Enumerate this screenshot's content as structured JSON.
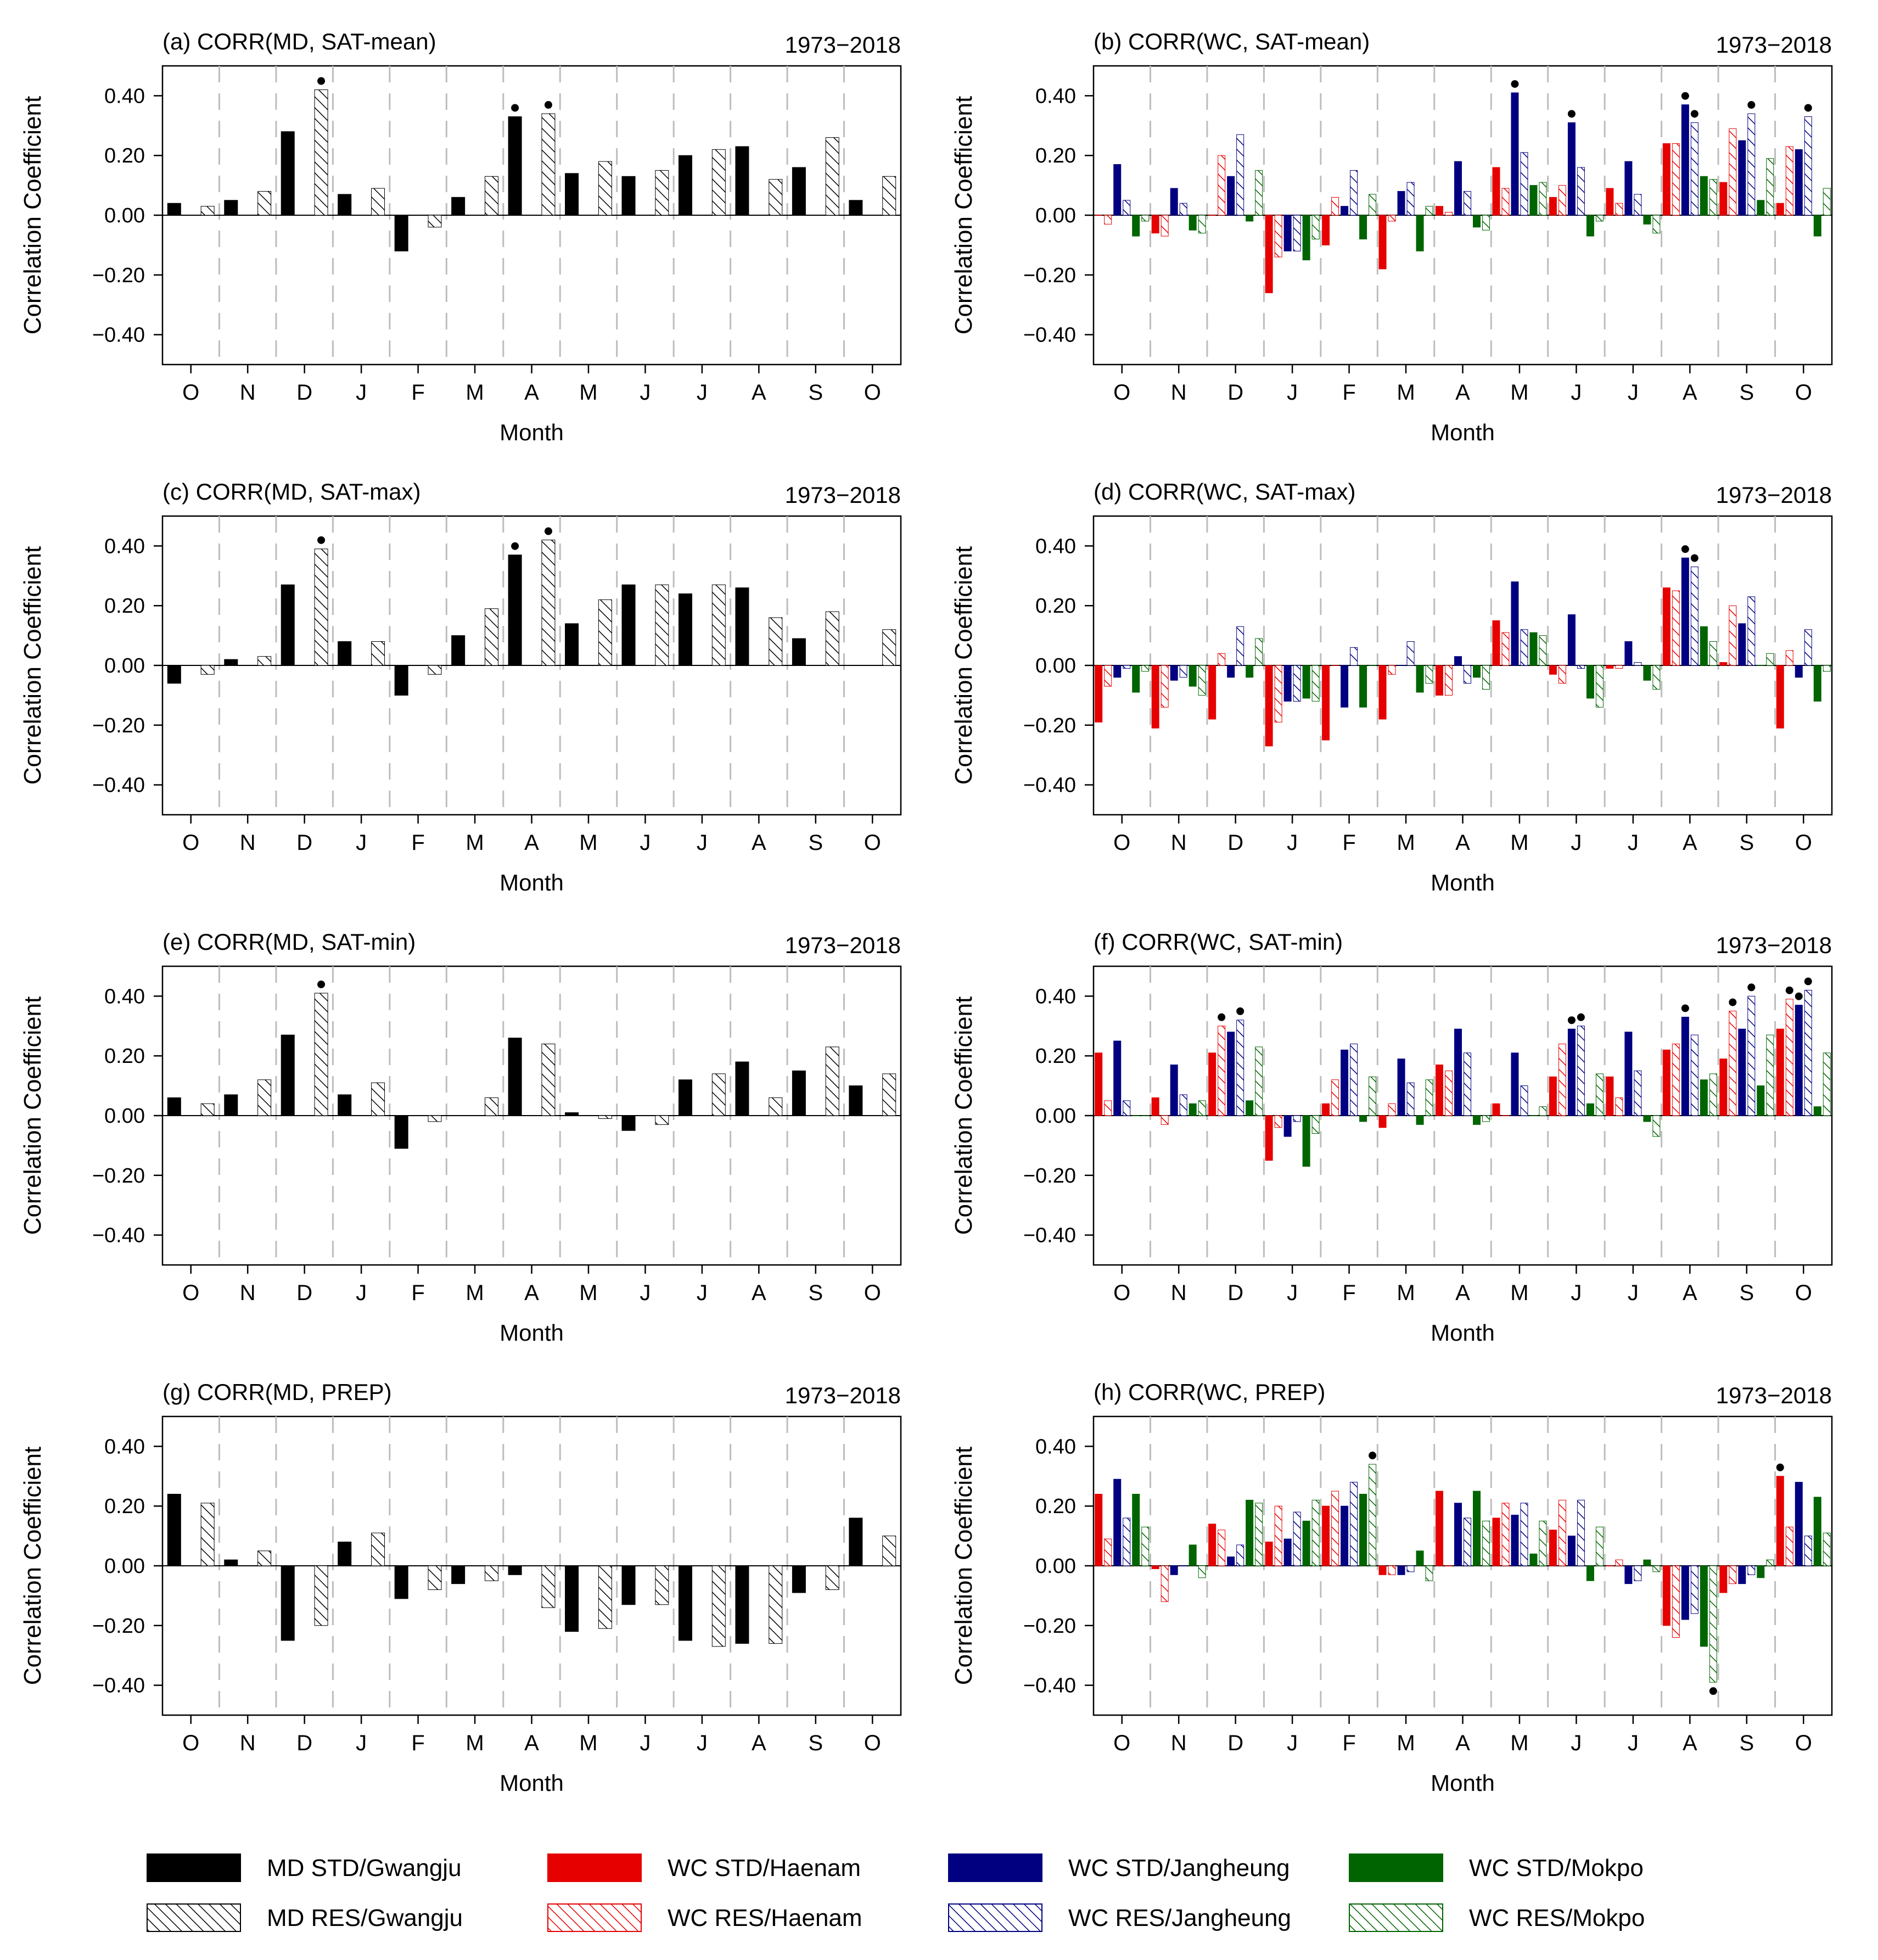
{
  "legend": [
    {
      "label": "MD STD/Gwangju",
      "color": "#000000",
      "style": "solid"
    },
    {
      "label": "WC STD/Haenam",
      "color": "#e60000",
      "style": "solid"
    },
    {
      "label": "WC STD/Jangheung",
      "color": "#000080",
      "style": "solid"
    },
    {
      "label": "WC STD/Mokpo",
      "color": "#006400",
      "style": "solid"
    },
    {
      "label": "MD RES/Gwangju",
      "color": "#000000",
      "style": "hatch"
    },
    {
      "label": "WC RES/Haenam",
      "color": "#e60000",
      "style": "hatch"
    },
    {
      "label": "WC RES/Jangheung",
      "color": "#000080",
      "style": "hatch"
    },
    {
      "label": "WC RES/Mokpo",
      "color": "#006400",
      "style": "hatch"
    }
  ],
  "chart_data": [
    {
      "type": "bar",
      "title": "(a) CORR(MD, SAT-mean)",
      "period": "1973−2018",
      "xlabel": "Month",
      "ylabel": "Correlation Coefficient",
      "ylim": [
        -0.5,
        0.5
      ],
      "yticks": [
        "0.40",
        "0.20",
        "0.00",
        "−0.20",
        "−0.40"
      ],
      "categories": [
        "O",
        "N",
        "D",
        "J",
        "F",
        "M",
        "A",
        "M",
        "J",
        "J",
        "A",
        "S",
        "O"
      ],
      "series": [
        {
          "name": "MD STD/Gwangju",
          "color": "#000000",
          "style": "solid",
          "values": [
            0.04,
            0.05,
            0.28,
            0.07,
            -0.12,
            0.06,
            0.33,
            0.14,
            0.13,
            0.2,
            0.23,
            0.16,
            0.05
          ],
          "significant": [
            6
          ]
        },
        {
          "name": "MD RES/Gwangju",
          "color": "#000000",
          "style": "hatch",
          "values": [
            0.03,
            0.08,
            0.42,
            0.09,
            -0.04,
            0.13,
            0.34,
            0.18,
            0.15,
            0.22,
            0.12,
            0.26,
            0.13
          ],
          "significant": [
            2,
            6
          ]
        }
      ]
    },
    {
      "type": "bar",
      "title": "(b) CORR(WC, SAT-mean)",
      "period": "1973−2018",
      "xlabel": "Month",
      "ylabel": "Correlation Coefficient",
      "ylim": [
        -0.5,
        0.5
      ],
      "yticks": [
        "0.40",
        "0.20",
        "0.00",
        "−0.20",
        "−0.40"
      ],
      "categories": [
        "O",
        "N",
        "D",
        "J",
        "F",
        "M",
        "A",
        "M",
        "J",
        "J",
        "A",
        "S",
        "O"
      ],
      "series": [
        {
          "name": "WC STD/Haenam",
          "color": "#e60000",
          "style": "solid",
          "values": [
            0.0,
            -0.06,
            0.0,
            -0.26,
            -0.1,
            -0.18,
            0.03,
            0.16,
            0.06,
            0.09,
            0.24,
            0.11,
            0.04
          ],
          "significant": []
        },
        {
          "name": "WC RES/Haenam",
          "color": "#e60000",
          "style": "hatch",
          "values": [
            -0.03,
            -0.07,
            0.2,
            -0.14,
            0.06,
            -0.02,
            0.01,
            0.09,
            0.1,
            0.04,
            0.24,
            0.29,
            0.23
          ],
          "significant": []
        },
        {
          "name": "WC STD/Jangheung",
          "color": "#000080",
          "style": "solid",
          "values": [
            0.17,
            0.09,
            0.13,
            -0.12,
            0.03,
            0.08,
            0.18,
            0.41,
            0.31,
            0.18,
            0.37,
            0.25,
            0.22
          ],
          "significant": [
            7,
            8,
            10
          ]
        },
        {
          "name": "WC RES/Jangheung",
          "color": "#000080",
          "style": "hatch",
          "values": [
            0.05,
            0.04,
            0.27,
            -0.12,
            0.15,
            0.11,
            0.08,
            0.21,
            0.16,
            0.07,
            0.31,
            0.34,
            0.33
          ],
          "significant": [
            10,
            11,
            12
          ]
        },
        {
          "name": "WC STD/Mokpo",
          "color": "#006400",
          "style": "solid",
          "values": [
            -0.07,
            -0.05,
            -0.02,
            -0.15,
            -0.08,
            -0.12,
            -0.04,
            0.1,
            -0.07,
            -0.03,
            0.13,
            0.05,
            -0.07
          ],
          "significant": []
        },
        {
          "name": "WC RES/Mokpo",
          "color": "#006400",
          "style": "hatch",
          "values": [
            -0.02,
            -0.06,
            0.15,
            -0.08,
            0.07,
            0.03,
            -0.05,
            0.11,
            -0.02,
            -0.06,
            0.12,
            0.19,
            0.09
          ],
          "significant": []
        }
      ]
    },
    {
      "type": "bar",
      "title": "(c) CORR(MD, SAT-max)",
      "period": "1973−2018",
      "xlabel": "Month",
      "ylabel": "Correlation Coefficient",
      "ylim": [
        -0.5,
        0.5
      ],
      "yticks": [
        "0.40",
        "0.20",
        "0.00",
        "−0.20",
        "−0.40"
      ],
      "categories": [
        "O",
        "N",
        "D",
        "J",
        "F",
        "M",
        "A",
        "M",
        "J",
        "J",
        "A",
        "S",
        "O"
      ],
      "series": [
        {
          "name": "MD STD/Gwangju",
          "color": "#000000",
          "style": "solid",
          "values": [
            -0.06,
            0.02,
            0.27,
            0.08,
            -0.1,
            0.1,
            0.37,
            0.14,
            0.27,
            0.24,
            0.26,
            0.09,
            0.0
          ],
          "significant": [
            6
          ]
        },
        {
          "name": "MD RES/Gwangju",
          "color": "#000000",
          "style": "hatch",
          "values": [
            -0.03,
            0.03,
            0.39,
            0.08,
            -0.03,
            0.19,
            0.42,
            0.22,
            0.27,
            0.27,
            0.16,
            0.18,
            0.12
          ],
          "significant": [
            2,
            6
          ]
        }
      ]
    },
    {
      "type": "bar",
      "title": "(d) CORR(WC, SAT-max)",
      "period": "1973−2018",
      "xlabel": "Month",
      "ylabel": "Correlation Coefficient",
      "ylim": [
        -0.5,
        0.5
      ],
      "yticks": [
        "0.40",
        "0.20",
        "0.00",
        "−0.20",
        "−0.40"
      ],
      "categories": [
        "O",
        "N",
        "D",
        "J",
        "F",
        "M",
        "A",
        "M",
        "J",
        "J",
        "A",
        "S",
        "O"
      ],
      "series": [
        {
          "name": "WC STD/Haenam",
          "color": "#e60000",
          "style": "solid",
          "values": [
            -0.19,
            -0.21,
            -0.18,
            -0.27,
            -0.25,
            -0.18,
            -0.1,
            0.15,
            -0.03,
            -0.01,
            0.26,
            0.01,
            -0.21
          ],
          "significant": []
        },
        {
          "name": "WC RES/Haenam",
          "color": "#e60000",
          "style": "hatch",
          "values": [
            -0.07,
            -0.14,
            0.04,
            -0.19,
            0.0,
            -0.03,
            -0.1,
            0.11,
            -0.06,
            -0.01,
            0.25,
            0.2,
            0.05
          ],
          "significant": []
        },
        {
          "name": "WC STD/Jangheung",
          "color": "#000080",
          "style": "solid",
          "values": [
            -0.04,
            -0.05,
            -0.04,
            -0.12,
            -0.14,
            0.0,
            0.03,
            0.28,
            0.17,
            0.08,
            0.36,
            0.14,
            -0.04
          ],
          "significant": [
            10
          ]
        },
        {
          "name": "WC RES/Jangheung",
          "color": "#000080",
          "style": "hatch",
          "values": [
            -0.01,
            -0.04,
            0.13,
            -0.12,
            0.06,
            0.08,
            -0.06,
            0.12,
            -0.01,
            0.01,
            0.33,
            0.23,
            0.12
          ],
          "significant": [
            10
          ]
        },
        {
          "name": "WC STD/Mokpo",
          "color": "#006400",
          "style": "solid",
          "values": [
            -0.09,
            -0.07,
            -0.04,
            -0.11,
            -0.14,
            -0.09,
            -0.04,
            0.11,
            -0.11,
            -0.05,
            0.13,
            0.0,
            -0.12
          ],
          "significant": []
        },
        {
          "name": "WC RES/Mokpo",
          "color": "#006400",
          "style": "hatch",
          "values": [
            -0.02,
            -0.1,
            0.09,
            -0.12,
            0.0,
            -0.06,
            -0.08,
            0.1,
            -0.14,
            -0.08,
            0.08,
            0.04,
            -0.02
          ],
          "significant": []
        }
      ]
    },
    {
      "type": "bar",
      "title": "(e) CORR(MD, SAT-min)",
      "period": "1973−2018",
      "xlabel": "Month",
      "ylabel": "Correlation Coefficient",
      "ylim": [
        -0.5,
        0.5
      ],
      "yticks": [
        "0.40",
        "0.20",
        "0.00",
        "−0.20",
        "−0.40"
      ],
      "categories": [
        "O",
        "N",
        "D",
        "J",
        "F",
        "M",
        "A",
        "M",
        "J",
        "J",
        "A",
        "S",
        "O"
      ],
      "series": [
        {
          "name": "MD STD/Gwangju",
          "color": "#000000",
          "style": "solid",
          "values": [
            0.06,
            0.07,
            0.27,
            0.07,
            -0.11,
            0.0,
            0.26,
            0.01,
            -0.05,
            0.12,
            0.18,
            0.15,
            0.1
          ],
          "significant": []
        },
        {
          "name": "MD RES/Gwangju",
          "color": "#000000",
          "style": "hatch",
          "values": [
            0.04,
            0.12,
            0.41,
            0.11,
            -0.02,
            0.06,
            0.24,
            -0.01,
            -0.03,
            0.14,
            0.06,
            0.23,
            0.14
          ],
          "significant": [
            2
          ]
        }
      ]
    },
    {
      "type": "bar",
      "title": "(f) CORR(WC, SAT-min)",
      "period": "1973−2018",
      "xlabel": "Month",
      "ylabel": "Correlation Coefficient",
      "ylim": [
        -0.5,
        0.5
      ],
      "yticks": [
        "0.40",
        "0.20",
        "0.00",
        "−0.20",
        "−0.40"
      ],
      "categories": [
        "O",
        "N",
        "D",
        "J",
        "F",
        "M",
        "A",
        "M",
        "J",
        "J",
        "A",
        "S",
        "O"
      ],
      "series": [
        {
          "name": "WC STD/Haenam",
          "color": "#e60000",
          "style": "solid",
          "values": [
            0.21,
            0.06,
            0.21,
            -0.15,
            0.04,
            -0.04,
            0.17,
            0.04,
            0.13,
            0.13,
            0.22,
            0.19,
            0.29
          ],
          "significant": []
        },
        {
          "name": "WC RES/Haenam",
          "color": "#e60000",
          "style": "hatch",
          "values": [
            0.05,
            -0.03,
            0.3,
            -0.04,
            0.12,
            0.04,
            0.15,
            0.0,
            0.24,
            0.06,
            0.24,
            0.35,
            0.39
          ],
          "significant": [
            2,
            11,
            12
          ]
        },
        {
          "name": "WC STD/Jangheung",
          "color": "#000080",
          "style": "solid",
          "values": [
            0.25,
            0.17,
            0.28,
            -0.07,
            0.22,
            0.19,
            0.29,
            0.21,
            0.29,
            0.28,
            0.33,
            0.29,
            0.37
          ],
          "significant": [
            8,
            10,
            12
          ]
        },
        {
          "name": "WC RES/Jangheung",
          "color": "#000080",
          "style": "hatch",
          "values": [
            0.05,
            0.07,
            0.32,
            -0.02,
            0.24,
            0.11,
            0.21,
            0.1,
            0.3,
            0.15,
            0.27,
            0.4,
            0.42
          ],
          "significant": [
            2,
            8,
            11,
            12
          ]
        },
        {
          "name": "WC STD/Mokpo",
          "color": "#006400",
          "style": "solid",
          "values": [
            0.0,
            0.04,
            0.05,
            -0.17,
            -0.02,
            -0.03,
            -0.03,
            0.0,
            0.04,
            -0.02,
            0.12,
            0.1,
            0.03
          ],
          "significant": []
        },
        {
          "name": "WC RES/Mokpo",
          "color": "#006400",
          "style": "hatch",
          "values": [
            0.0,
            0.05,
            0.23,
            -0.06,
            0.13,
            0.12,
            -0.02,
            0.03,
            0.14,
            -0.07,
            0.14,
            0.27,
            0.21
          ],
          "significant": []
        }
      ]
    },
    {
      "type": "bar",
      "title": "(g) CORR(MD, PREP)",
      "period": "1973−2018",
      "xlabel": "Month",
      "ylabel": "Correlation Coefficient",
      "ylim": [
        -0.5,
        0.5
      ],
      "yticks": [
        "0.40",
        "0.20",
        "0.00",
        "−0.20",
        "−0.40"
      ],
      "categories": [
        "O",
        "N",
        "D",
        "J",
        "F",
        "M",
        "A",
        "M",
        "J",
        "J",
        "A",
        "S",
        "O"
      ],
      "series": [
        {
          "name": "MD STD/Gwangju",
          "color": "#000000",
          "style": "solid",
          "values": [
            0.24,
            0.02,
            -0.25,
            0.08,
            -0.11,
            -0.06,
            -0.03,
            -0.22,
            -0.13,
            -0.25,
            -0.26,
            -0.09,
            0.16
          ],
          "significant": []
        },
        {
          "name": "MD RES/Gwangju",
          "color": "#000000",
          "style": "hatch",
          "values": [
            0.21,
            0.05,
            -0.2,
            0.11,
            -0.08,
            -0.05,
            -0.14,
            -0.21,
            -0.13,
            -0.27,
            -0.26,
            -0.08,
            0.1
          ],
          "significant": []
        }
      ]
    },
    {
      "type": "bar",
      "title": "(h) CORR(WC, PREP)",
      "period": "1973−2018",
      "xlabel": "Month",
      "ylabel": "Correlation Coefficient",
      "ylim": [
        -0.5,
        0.5
      ],
      "yticks": [
        "0.40",
        "0.20",
        "0.00",
        "−0.20",
        "−0.40"
      ],
      "categories": [
        "O",
        "N",
        "D",
        "J",
        "F",
        "M",
        "A",
        "M",
        "J",
        "J",
        "A",
        "S",
        "O"
      ],
      "series": [
        {
          "name": "WC STD/Haenam",
          "color": "#e60000",
          "style": "solid",
          "values": [
            0.24,
            -0.01,
            0.14,
            0.08,
            0.2,
            -0.03,
            0.25,
            0.16,
            0.12,
            0.0,
            -0.2,
            -0.09,
            0.3
          ],
          "significant": [
            12
          ]
        },
        {
          "name": "WC RES/Haenam",
          "color": "#e60000",
          "style": "hatch",
          "values": [
            0.09,
            -0.12,
            0.12,
            0.2,
            0.25,
            -0.03,
            0.0,
            0.21,
            0.22,
            0.02,
            -0.24,
            -0.06,
            0.13
          ],
          "significant": []
        },
        {
          "name": "WC STD/Jangheung",
          "color": "#000080",
          "style": "solid",
          "values": [
            0.29,
            -0.03,
            0.03,
            0.09,
            0.2,
            -0.03,
            0.21,
            0.17,
            0.1,
            -0.06,
            -0.18,
            -0.06,
            0.28
          ],
          "significant": []
        },
        {
          "name": "WC RES/Jangheung",
          "color": "#000080",
          "style": "hatch",
          "values": [
            0.16,
            0.0,
            0.07,
            0.18,
            0.28,
            -0.02,
            0.16,
            0.21,
            0.22,
            -0.05,
            -0.16,
            -0.03,
            0.1
          ],
          "significant": []
        },
        {
          "name": "WC STD/Mokpo",
          "color": "#006400",
          "style": "solid",
          "values": [
            0.24,
            0.07,
            0.22,
            0.15,
            0.24,
            0.05,
            0.25,
            0.04,
            -0.05,
            0.02,
            -0.27,
            -0.04,
            0.23
          ],
          "significant": []
        },
        {
          "name": "WC RES/Mokpo",
          "color": "#006400",
          "style": "hatch",
          "values": [
            0.13,
            -0.04,
            0.21,
            0.22,
            0.34,
            -0.05,
            0.15,
            0.15,
            0.13,
            -0.02,
            -0.39,
            0.02,
            0.11
          ],
          "significant": [
            4,
            10
          ]
        }
      ]
    }
  ]
}
